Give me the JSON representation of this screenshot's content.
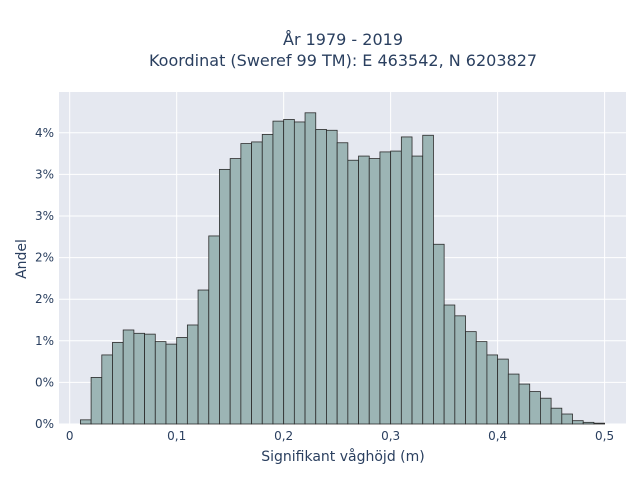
{
  "chart_data": {
    "type": "bar",
    "title_lines": [
      "År 1979 - 2019",
      "Koordinat (Sweref 99 TM): E 463542, N 6203827"
    ],
    "xlabel": "Signifikant våghöjd (m)",
    "ylabel": "Andel",
    "xlim": [
      -0.01,
      0.52
    ],
    "ylim": [
      0,
      0.0399
    ],
    "x_ticks": [
      0,
      0.1,
      0.2,
      0.3,
      0.4,
      0.5
    ],
    "x_tick_labels": [
      "0",
      "0,1",
      "0,2",
      "0,3",
      "0,4",
      "0,5"
    ],
    "y_ticks": [
      0,
      0.005,
      0.01,
      0.015,
      0.02,
      0.025,
      0.03,
      0.035,
      0.04
    ],
    "y_tick_labels": [
      "0%",
      "0%",
      "1%",
      "2%",
      "2%",
      "3%",
      "3%",
      "4%",
      "4%"
    ],
    "bin_width": 0.01,
    "bin_starts": [
      0.01,
      0.02,
      0.03,
      0.04,
      0.05,
      0.06,
      0.07,
      0.08,
      0.09,
      0.1,
      0.11,
      0.12,
      0.13,
      0.14,
      0.15,
      0.16,
      0.17,
      0.18,
      0.19,
      0.2,
      0.21,
      0.22,
      0.23,
      0.24,
      0.25,
      0.26,
      0.27,
      0.28,
      0.29,
      0.3,
      0.31,
      0.32,
      0.33,
      0.34,
      0.35,
      0.36,
      0.37,
      0.38,
      0.39,
      0.4,
      0.41,
      0.42,
      0.43,
      0.44,
      0.45,
      0.46,
      0.47,
      0.48,
      0.49
    ],
    "values": [
      0.0005,
      0.0056,
      0.0083,
      0.0098,
      0.0113,
      0.0109,
      0.0108,
      0.0099,
      0.0096,
      0.0104,
      0.0119,
      0.0161,
      0.0226,
      0.0306,
      0.0319,
      0.0337,
      0.0339,
      0.0348,
      0.0364,
      0.0366,
      0.0363,
      0.0374,
      0.0354,
      0.0353,
      0.0338,
      0.0317,
      0.0322,
      0.0319,
      0.0327,
      0.0328,
      0.0345,
      0.0322,
      0.0347,
      0.0216,
      0.0143,
      0.013,
      0.0111,
      0.0099,
      0.0083,
      0.0078,
      0.006,
      0.0048,
      0.0039,
      0.0031,
      0.0019,
      0.0012,
      0.0004,
      0.0002,
      0.0001
    ],
    "grid": true,
    "bar_color": "#9cb5b5",
    "bar_edge_color": "#2b2b2b",
    "plot_background": "#e5e8f0",
    "grid_color": "#ffffff"
  }
}
